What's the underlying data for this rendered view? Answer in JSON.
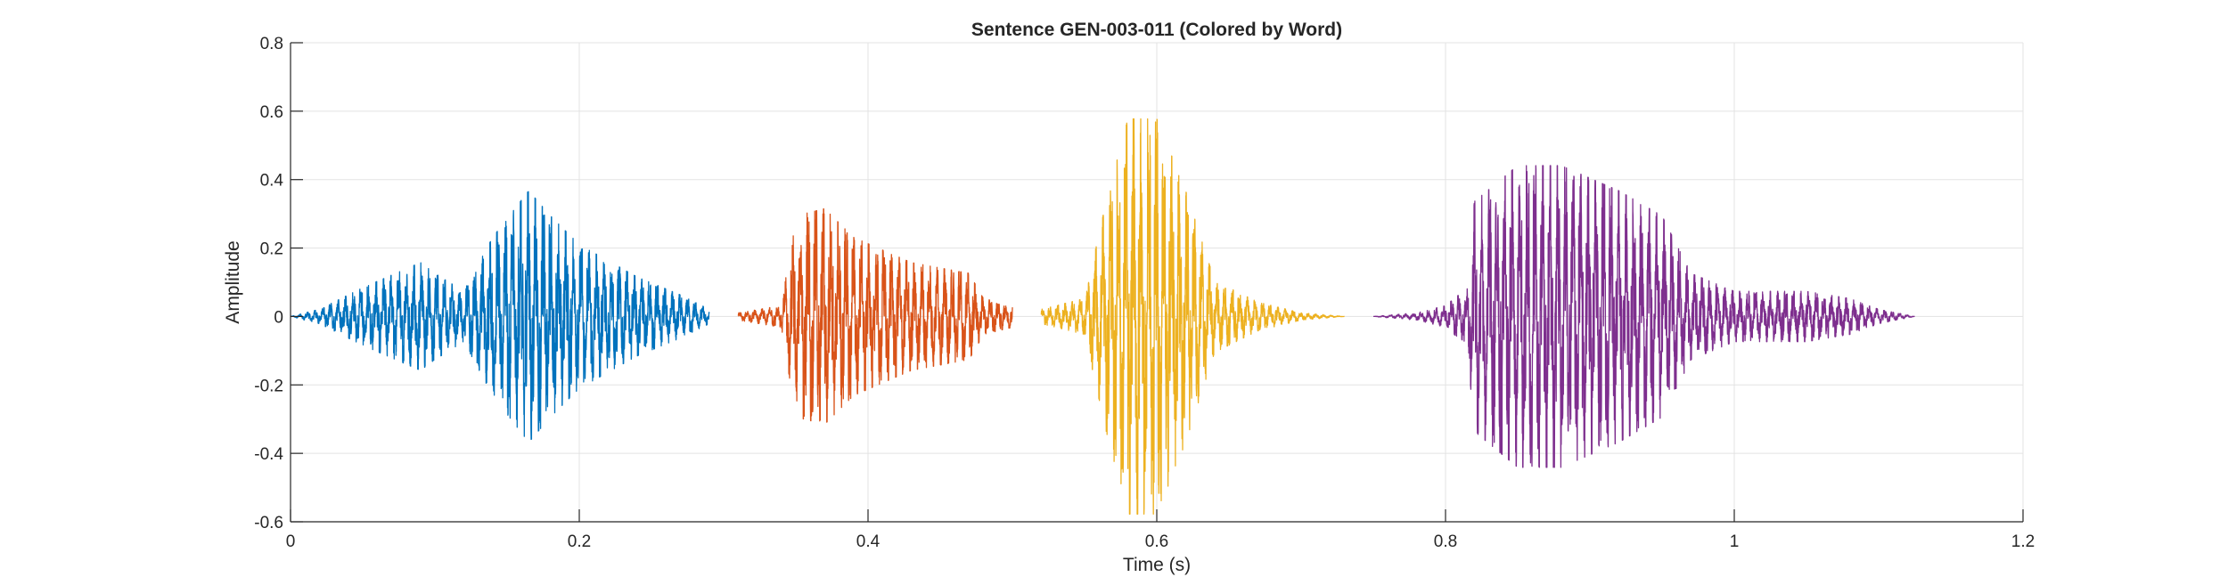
{
  "chart_data": {
    "type": "line",
    "title": "Sentence GEN-003-011 (Colored by Word)",
    "xlabel": "Time (s)",
    "ylabel": "Amplitude",
    "xlim": [
      0,
      1.2
    ],
    "ylim": [
      -0.6,
      0.8
    ],
    "xticks": [
      0,
      0.2,
      0.4,
      0.6,
      0.8,
      1,
      1.2
    ],
    "yticks": [
      -0.6,
      -0.4,
      -0.2,
      0,
      0.2,
      0.4,
      0.6,
      0.8
    ],
    "xtick_labels": [
      "0",
      "0.2",
      "0.4",
      "0.6",
      "0.8",
      "1",
      "1.2"
    ],
    "ytick_labels": [
      "-0.6",
      "-0.4",
      "-0.2",
      "0",
      "0.2",
      "0.4",
      "0.6",
      "0.8"
    ],
    "grid": true,
    "series": [
      {
        "color": "#0072BD",
        "x_range": [
          0,
          0.29
        ],
        "envelope": [
          [
            0,
            0.0
          ],
          [
            0.02,
            0.02
          ],
          [
            0.05,
            0.08
          ],
          [
            0.09,
            0.15
          ],
          [
            0.1,
            0.12
          ],
          [
            0.12,
            0.07
          ],
          [
            0.14,
            0.22
          ],
          [
            0.165,
            0.35
          ],
          [
            0.18,
            0.28
          ],
          [
            0.2,
            0.2
          ],
          [
            0.24,
            0.11
          ],
          [
            0.27,
            0.06
          ],
          [
            0.29,
            0.02
          ]
        ]
      },
      {
        "color": "#D95319",
        "x_range": [
          0.31,
          0.5
        ],
        "envelope": [
          [
            0.31,
            0.01
          ],
          [
            0.34,
            0.03
          ],
          [
            0.35,
            0.28
          ],
          [
            0.37,
            0.3
          ],
          [
            0.39,
            0.22
          ],
          [
            0.43,
            0.15
          ],
          [
            0.47,
            0.12
          ],
          [
            0.48,
            0.05
          ],
          [
            0.5,
            0.03
          ]
        ]
      },
      {
        "color": "#EDB120",
        "x_range": [
          0.52,
          0.73
        ],
        "envelope": [
          [
            0.52,
            0.02
          ],
          [
            0.55,
            0.05
          ],
          [
            0.565,
            0.32
          ],
          [
            0.58,
            0.55
          ],
          [
            0.6,
            0.55
          ],
          [
            0.62,
            0.35
          ],
          [
            0.64,
            0.1
          ],
          [
            0.67,
            0.04
          ],
          [
            0.7,
            0.01
          ],
          [
            0.73,
            0.0
          ]
        ]
      },
      {
        "color": "#7E2F8E",
        "x_range": [
          0.75,
          1.125
        ],
        "envelope": [
          [
            0.75,
            0.0
          ],
          [
            0.78,
            0.01
          ],
          [
            0.8,
            0.03
          ],
          [
            0.815,
            0.08
          ],
          [
            0.82,
            0.32
          ],
          [
            0.85,
            0.42
          ],
          [
            0.88,
            0.42
          ],
          [
            0.92,
            0.35
          ],
          [
            0.95,
            0.28
          ],
          [
            0.97,
            0.12
          ],
          [
            1.0,
            0.07
          ],
          [
            1.05,
            0.07
          ],
          [
            1.08,
            0.05
          ],
          [
            1.1,
            0.02
          ],
          [
            1.125,
            0.0
          ]
        ]
      }
    ]
  }
}
